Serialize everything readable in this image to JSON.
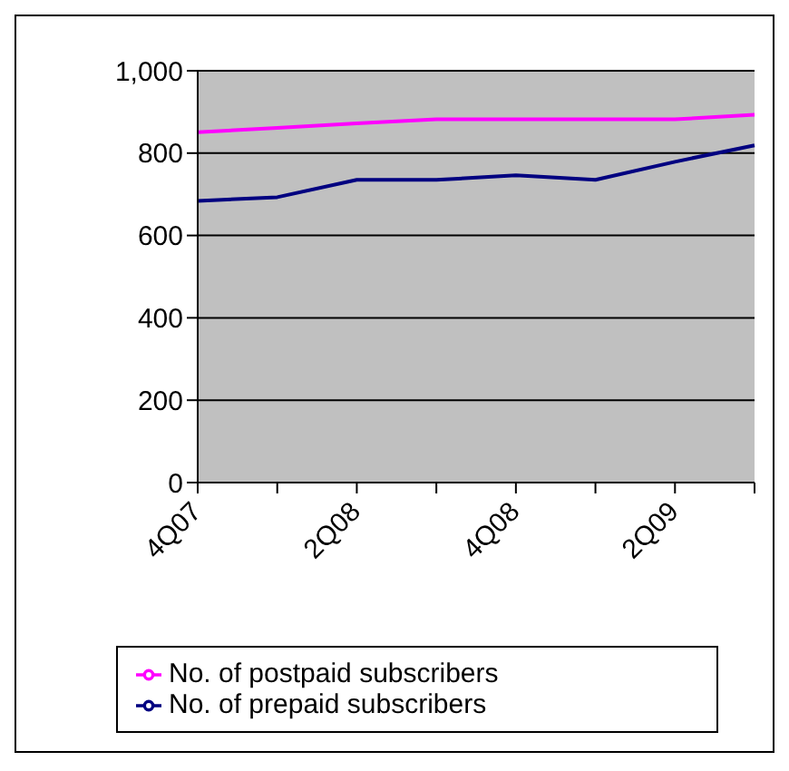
{
  "chart_data": {
    "type": "line",
    "categories": [
      "4Q07",
      null,
      "2Q08",
      null,
      "4Q08",
      null,
      "2Q09",
      null
    ],
    "series": [
      {
        "name": "No. of prepaid subscribers",
        "color": "#000080",
        "values": [
          684,
          693,
          735,
          735,
          746,
          735,
          779,
          819
        ]
      },
      {
        "name": "No. of postpaid subscribers",
        "color": "#ff00ff",
        "values": [
          851,
          861,
          872,
          882,
          882,
          882,
          882,
          893
        ]
      }
    ],
    "ylim": [
      0,
      1000
    ],
    "yticks": [
      0,
      200,
      400,
      600,
      800,
      {
        "value": 1000,
        "label": "1,000"
      }
    ],
    "grid": "y",
    "legend": "bottom",
    "marker": "none",
    "line_style": "solid"
  }
}
